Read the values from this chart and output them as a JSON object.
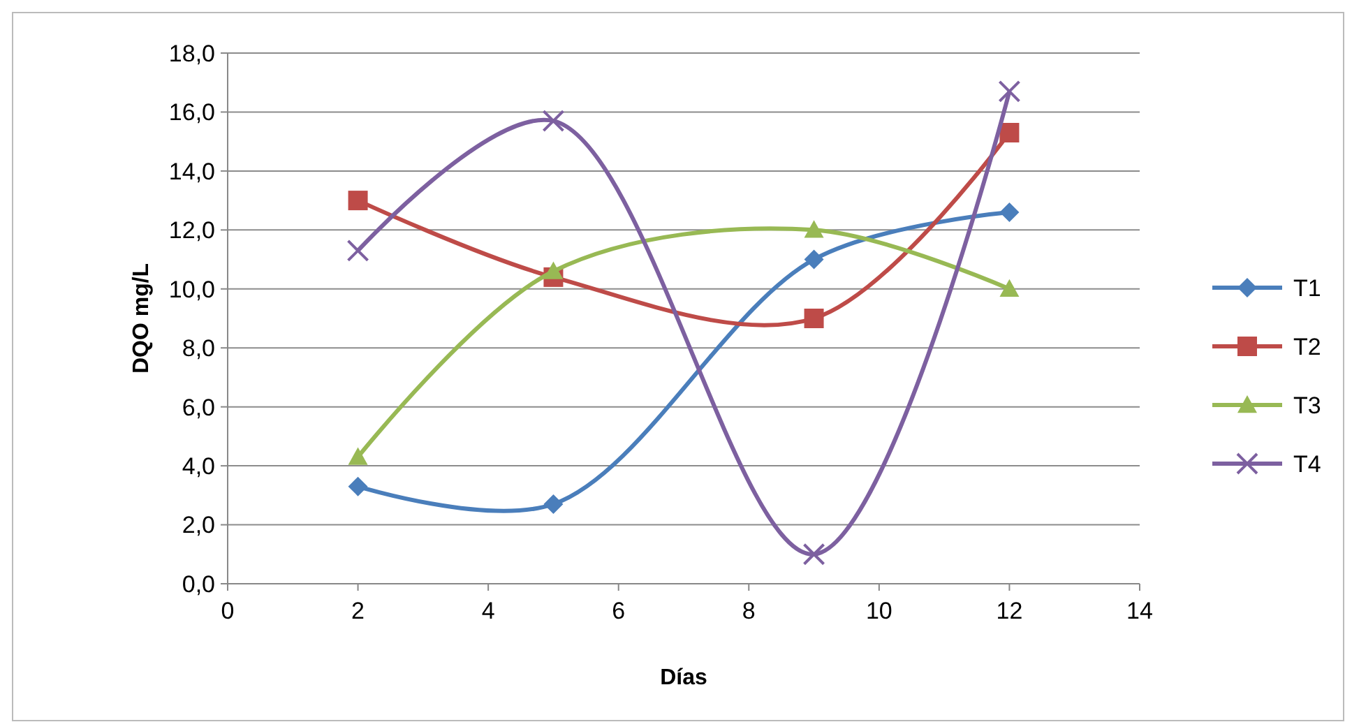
{
  "chart_data": {
    "type": "line",
    "xlabel": "Días",
    "ylabel": "DQO mg/L",
    "x": [
      2,
      5,
      9,
      12
    ],
    "series": [
      {
        "name": "T1",
        "color": "#4a7ebb",
        "marker": "diamond",
        "values": [
          3.3,
          2.7,
          11.0,
          12.6
        ]
      },
      {
        "name": "T2",
        "color": "#be4b48",
        "marker": "square",
        "values": [
          13.0,
          10.4,
          9.0,
          15.3
        ]
      },
      {
        "name": "T3",
        "color": "#98b954",
        "marker": "triangle",
        "values": [
          4.3,
          10.6,
          12.0,
          10.0
        ]
      },
      {
        "name": "T4",
        "color": "#7d60a0",
        "marker": "cross",
        "values": [
          11.3,
          15.7,
          1.0,
          16.7
        ]
      }
    ],
    "xlim": [
      0,
      14
    ],
    "xticks": [
      0,
      2,
      4,
      6,
      8,
      10,
      12,
      14
    ],
    "ylim": [
      0,
      18
    ],
    "yticks": [
      {
        "value": 0,
        "label": "0,0"
      },
      {
        "value": 2,
        "label": "2,0"
      },
      {
        "value": 4,
        "label": "4,0"
      },
      {
        "value": 6,
        "label": "6,0"
      },
      {
        "value": 8,
        "label": "8,0"
      },
      {
        "value": 10,
        "label": "10,0"
      },
      {
        "value": 12,
        "label": "12,0"
      },
      {
        "value": 14,
        "label": "14,0"
      },
      {
        "value": 16,
        "label": "16,0"
      },
      {
        "value": 18,
        "label": "18,0"
      }
    ],
    "grid": "y",
    "legend": "right",
    "line_style": "solid"
  }
}
